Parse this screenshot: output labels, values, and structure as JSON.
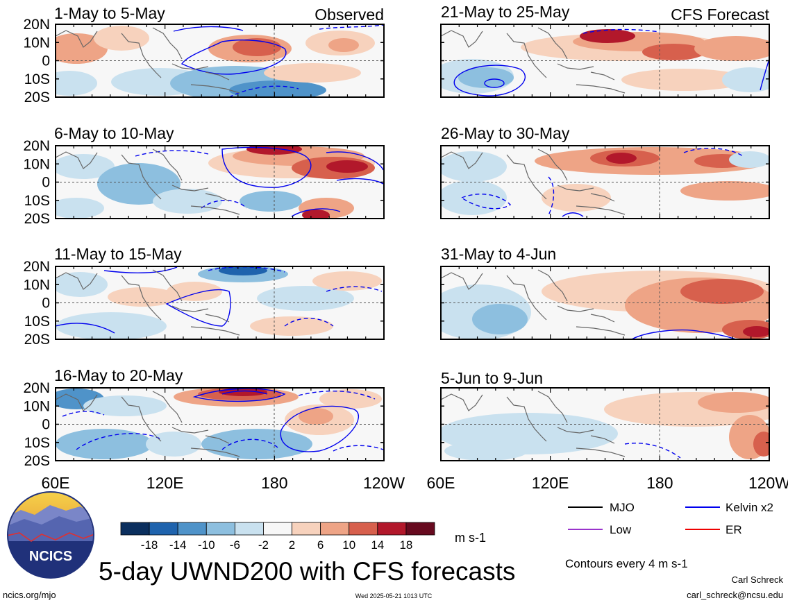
{
  "chart_data": {
    "type": "heatmap",
    "title": "5-day UWND200 with CFS forecasts",
    "variable": "UWND200",
    "units": "m s-1",
    "contour_note": "Contours every 4 m s-1",
    "x_ticks": [
      "60E",
      "120E",
      "180",
      "120W"
    ],
    "y_ticks": [
      "20N",
      "10N",
      "0",
      "10S",
      "20S"
    ],
    "colorbar_ticks": [
      "-18",
      "-14",
      "-10",
      "-6",
      "-2",
      "2",
      "6",
      "10",
      "14",
      "18"
    ],
    "colorbar_colors": [
      "#0b2f5e",
      "#1f63ad",
      "#4f93c9",
      "#8dbfdf",
      "#c9e1ef",
      "#f7f7f7",
      "#f7d2bd",
      "#eea486",
      "#d7604d",
      "#b2182b",
      "#670a1f"
    ],
    "legend": [
      {
        "label": "MJO",
        "color": "#000000"
      },
      {
        "label": "Kelvin x2",
        "color": "#0000ee"
      },
      {
        "label": "Low",
        "color": "#9933cc"
      },
      {
        "label": "ER",
        "color": "#ee0000"
      }
    ],
    "panels": [
      {
        "title": "1-May to 5-May",
        "tag": "Observed"
      },
      {
        "title": "21-May to 25-May",
        "tag": "CFS Forecast"
      },
      {
        "title": "6-May to 10-May",
        "tag": ""
      },
      {
        "title": "26-May to 30-May",
        "tag": ""
      },
      {
        "title": "11-May to 15-May",
        "tag": ""
      },
      {
        "title": "31-May to 4-Jun",
        "tag": ""
      },
      {
        "title": "16-May to 20-May",
        "tag": ""
      },
      {
        "title": "5-Jun to 9-Jun",
        "tag": ""
      }
    ]
  },
  "logo": {
    "text": "NCICS"
  },
  "footer": {
    "url": "ncics.org/mjo",
    "timestamp": "Wed 2025-05-21 1013 UTC",
    "author": "Carl Schreck",
    "email": "carl_schreck@ncsu.edu"
  }
}
